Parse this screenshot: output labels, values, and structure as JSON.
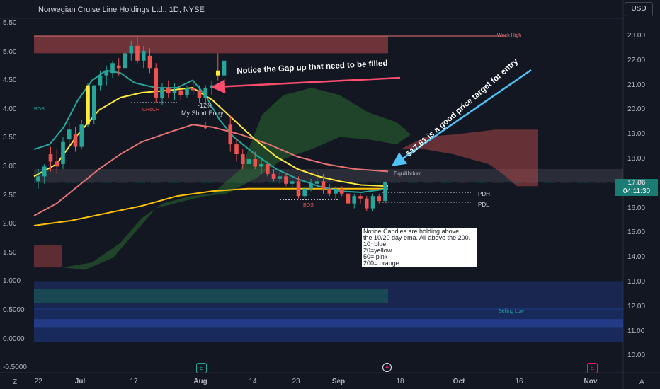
{
  "header": {
    "title": "Norwegian Cruise Line Holdings Ltd., 1D, NYSE",
    "currency": "USD"
  },
  "price_badge": {
    "price": "17.06",
    "countdown": "04:11:30"
  },
  "chart_data": [
    {
      "type": "candlestick",
      "title": "Norwegian Cruise Line Holdings Ltd., 1D, NYSE",
      "x_ticks": [
        "22",
        "Jul",
        "17",
        "Aug",
        "14",
        "23",
        "Sep",
        "18",
        "Oct",
        "16",
        "Nov"
      ],
      "y_ticks_right": [
        "23.00",
        "22.00",
        "21.00",
        "20.00",
        "19.00",
        "18.00",
        "17.00",
        "16.00",
        "15.00",
        "14.00",
        "13.00",
        "12.00",
        "11.00",
        "10.00"
      ],
      "ylim": [
        10,
        23.6
      ],
      "bars": [
        {
          "o": 17.1,
          "h": 17.6,
          "l": 16.8,
          "c": 17.3
        },
        {
          "o": 17.3,
          "h": 17.8,
          "l": 17.0,
          "c": 17.7
        },
        {
          "o": 18.2,
          "h": 18.5,
          "l": 17.5,
          "c": 17.9
        },
        {
          "o": 17.9,
          "h": 18.4,
          "l": 17.4,
          "c": 17.7
        },
        {
          "o": 17.8,
          "h": 18.9,
          "l": 17.6,
          "c": 18.7
        },
        {
          "o": 18.8,
          "h": 19.5,
          "l": 18.5,
          "c": 19.2
        },
        {
          "o": 19.0,
          "h": 19.3,
          "l": 18.3,
          "c": 18.5
        },
        {
          "o": 18.5,
          "h": 19.6,
          "l": 18.4,
          "c": 19.4
        },
        {
          "o": 19.4,
          "h": 21.1,
          "l": 19.3,
          "c": 21.0
        },
        {
          "o": 19.6,
          "h": 21.0,
          "l": 19.4,
          "c": 21.0
        },
        {
          "o": 21.0,
          "h": 21.6,
          "l": 20.8,
          "c": 21.4
        },
        {
          "o": 21.4,
          "h": 21.8,
          "l": 21.0,
          "c": 21.6
        },
        {
          "o": 21.5,
          "h": 22.0,
          "l": 21.3,
          "c": 21.9
        },
        {
          "o": 21.8,
          "h": 22.1,
          "l": 21.4,
          "c": 21.7
        },
        {
          "o": 21.7,
          "h": 22.5,
          "l": 21.6,
          "c": 22.3
        },
        {
          "o": 22.3,
          "h": 22.8,
          "l": 22.0,
          "c": 22.6
        },
        {
          "o": 22.6,
          "h": 23.0,
          "l": 21.9,
          "c": 22.0
        },
        {
          "o": 22.0,
          "h": 22.6,
          "l": 21.7,
          "c": 22.4
        },
        {
          "o": 22.2,
          "h": 22.5,
          "l": 21.5,
          "c": 21.7
        },
        {
          "o": 21.7,
          "h": 21.9,
          "l": 20.3,
          "c": 20.5
        },
        {
          "o": 20.5,
          "h": 21.1,
          "l": 20.2,
          "c": 20.9
        },
        {
          "o": 20.9,
          "h": 21.2,
          "l": 20.5,
          "c": 20.7
        },
        {
          "o": 20.7,
          "h": 21.1,
          "l": 20.4,
          "c": 20.8
        },
        {
          "o": 20.8,
          "h": 21.0,
          "l": 20.4,
          "c": 20.6
        },
        {
          "o": 20.6,
          "h": 21.0,
          "l": 20.5,
          "c": 20.9
        },
        {
          "o": 20.9,
          "h": 21.1,
          "l": 20.6,
          "c": 20.8
        },
        {
          "o": 20.8,
          "h": 21.0,
          "l": 20.3,
          "c": 20.5
        },
        {
          "o": 20.5,
          "h": 21.0,
          "l": 20.3,
          "c": 20.9
        },
        {
          "o": 20.9,
          "h": 21.2,
          "l": 20.6,
          "c": 21.0
        },
        {
          "o": 21.6,
          "h": 22.3,
          "l": 21.2,
          "c": 21.4
        },
        {
          "o": 21.4,
          "h": 22.2,
          "l": 21.3,
          "c": 22.0
        },
        {
          "o": 19.4,
          "h": 19.8,
          "l": 18.3,
          "c": 18.6
        },
        {
          "o": 18.6,
          "h": 18.8,
          "l": 17.9,
          "c": 18.2
        },
        {
          "o": 18.2,
          "h": 18.4,
          "l": 17.6,
          "c": 17.8
        },
        {
          "o": 17.8,
          "h": 18.2,
          "l": 17.5,
          "c": 18.0
        },
        {
          "o": 18.0,
          "h": 18.3,
          "l": 17.6,
          "c": 17.7
        },
        {
          "o": 17.7,
          "h": 18.0,
          "l": 17.4,
          "c": 17.8
        },
        {
          "o": 17.8,
          "h": 17.9,
          "l": 17.3,
          "c": 17.4
        },
        {
          "o": 17.4,
          "h": 17.6,
          "l": 17.1,
          "c": 17.2
        },
        {
          "o": 17.2,
          "h": 17.5,
          "l": 17.0,
          "c": 17.3
        },
        {
          "o": 17.3,
          "h": 17.4,
          "l": 16.9,
          "c": 17.0
        },
        {
          "o": 17.0,
          "h": 17.2,
          "l": 16.8,
          "c": 17.1
        },
        {
          "o": 17.1,
          "h": 17.3,
          "l": 16.4,
          "c": 16.5
        },
        {
          "o": 16.5,
          "h": 16.9,
          "l": 16.4,
          "c": 16.8
        },
        {
          "o": 16.8,
          "h": 17.2,
          "l": 16.7,
          "c": 17.0
        },
        {
          "o": 17.0,
          "h": 17.5,
          "l": 16.8,
          "c": 17.1
        },
        {
          "o": 17.1,
          "h": 17.4,
          "l": 16.6,
          "c": 16.8
        },
        {
          "o": 16.8,
          "h": 17.0,
          "l": 16.5,
          "c": 16.6
        },
        {
          "o": 16.6,
          "h": 16.9,
          "l": 16.4,
          "c": 16.8
        },
        {
          "o": 16.8,
          "h": 16.9,
          "l": 16.5,
          "c": 16.6
        },
        {
          "o": 16.6,
          "h": 16.7,
          "l": 16.0,
          "c": 16.2
        },
        {
          "o": 16.2,
          "h": 16.6,
          "l": 16.0,
          "c": 16.5
        },
        {
          "o": 16.5,
          "h": 16.6,
          "l": 16.2,
          "c": 16.4
        },
        {
          "o": 16.4,
          "h": 16.5,
          "l": 15.9,
          "c": 16.0
        },
        {
          "o": 16.0,
          "h": 16.6,
          "l": 15.9,
          "c": 16.5
        },
        {
          "o": 16.5,
          "h": 16.6,
          "l": 16.2,
          "c": 16.3
        },
        {
          "o": 16.3,
          "h": 17.1,
          "l": 16.2,
          "c": 17.06
        }
      ],
      "overlays": [
        {
          "name": "10 day ema",
          "color": "#26a69a"
        },
        {
          "name": "20 day ema",
          "color": "#ffeb3b"
        },
        {
          "name": "50 day ema",
          "color": "#e57373"
        },
        {
          "name": "200 day ema",
          "color": "#ffc107"
        }
      ],
      "levels": [
        {
          "label": "Week High",
          "value": 22.7,
          "color": "#e57373"
        },
        {
          "label": "Equilibrium",
          "value": 17.3,
          "color": "#b2b5be"
        },
        {
          "label": "PDH",
          "value": 16.65,
          "color": "#d1d4dc"
        },
        {
          "label": "PDL",
          "value": 16.25,
          "color": "#d1d4dc"
        }
      ],
      "markers": [
        "BOS",
        "CHoCH",
        "BOS"
      ],
      "trade_label": {
        "pct": "-12%",
        "text": "My Short Entry"
      }
    },
    {
      "type": "line",
      "y_ticks_left": [
        "5.50",
        "5.00",
        "4.50",
        "4.00",
        "3.50",
        "3.00",
        "2.50",
        "2.00",
        "1.50",
        "1.000",
        "0.5000",
        "0.0000",
        "-0.5000"
      ],
      "ylim": [
        -0.5,
        5.6
      ],
      "levels": [
        {
          "label": "Selling Low",
          "color": "#26a69a"
        }
      ]
    }
  ],
  "annotations": {
    "gap": "Notice the Gap up that need to be filled",
    "target": "$17.81 is a good price target for entry",
    "box_lines": [
      "Notice Candles are holding above",
      "the 10/20 day ema. All above the 200.",
      "10=blue",
      "20=yellow",
      "50= pink",
      "200= orange"
    ]
  },
  "events": {
    "earnings": "E",
    "dividend": "E"
  },
  "footer": {
    "timezone": "Z",
    "auto": "A"
  }
}
